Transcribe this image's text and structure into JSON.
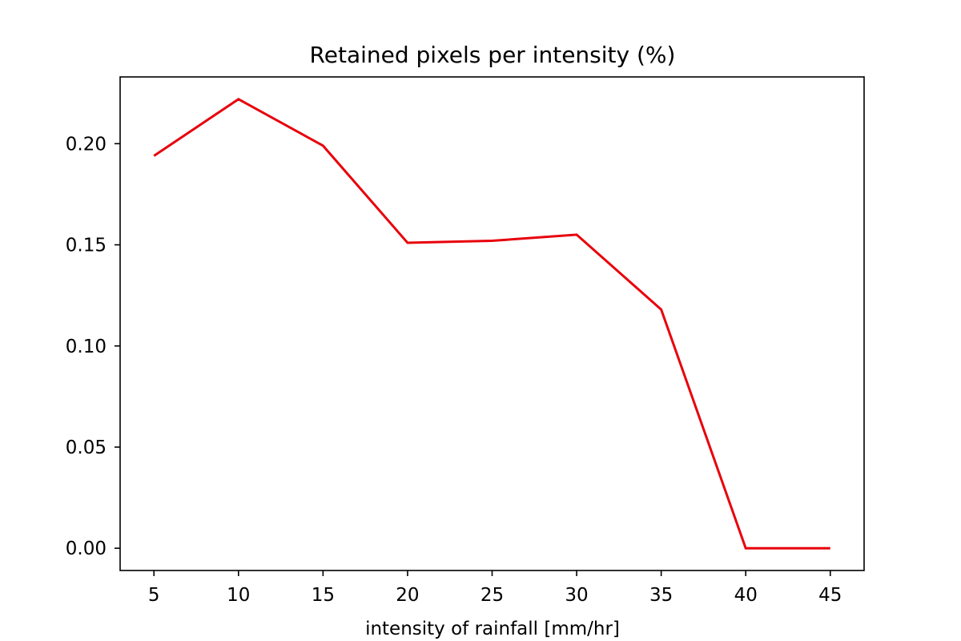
{
  "chart_data": {
    "type": "line",
    "title": "Retained pixels per intensity (%)",
    "xlabel": "intensity of rainfall [mm/hr]",
    "ylabel": "",
    "x": [
      5,
      10,
      15,
      20,
      25,
      30,
      35,
      40,
      45
    ],
    "series": [
      {
        "values": [
          0.194,
          0.222,
          0.199,
          0.151,
          0.152,
          0.155,
          0.118,
          0.0,
          0.0
        ],
        "color": "#e8000b"
      }
    ],
    "xlim": [
      3,
      47
    ],
    "ylim": [
      -0.011,
      0.233
    ],
    "xticks": [
      5,
      10,
      15,
      20,
      25,
      30,
      35,
      40,
      45
    ],
    "xtick_labels": [
      "5",
      "10",
      "15",
      "20",
      "25",
      "30",
      "35",
      "40",
      "45"
    ],
    "yticks": [
      0.0,
      0.05,
      0.1,
      0.15,
      0.2
    ],
    "ytick_labels": [
      "0.00",
      "0.05",
      "0.10",
      "0.15",
      "0.20"
    ],
    "grid": false,
    "legend": "none"
  }
}
